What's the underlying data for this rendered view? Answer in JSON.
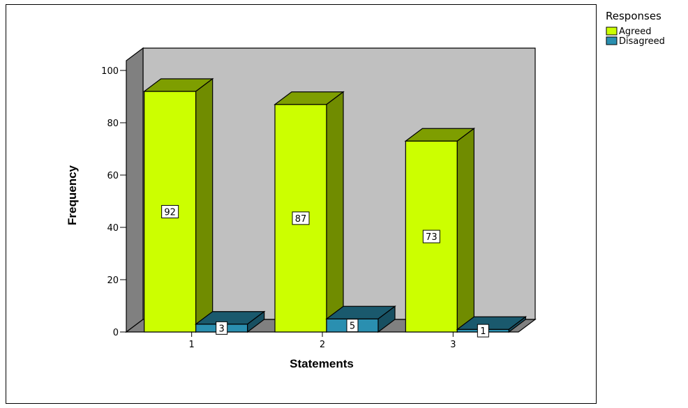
{
  "chart_data": {
    "type": "bar",
    "style": "3d-clustered",
    "xlabel": "Statements",
    "ylabel": "Frequency",
    "categories": [
      "1",
      "2",
      "3"
    ],
    "ylim": [
      0,
      100
    ],
    "yticks": [
      0,
      20,
      40,
      60,
      80,
      100
    ],
    "legend_title": "Responses",
    "legend_position": "top-right",
    "series": [
      {
        "name": "Agreed",
        "values": [
          92,
          87,
          73
        ],
        "color": "#ccff00"
      },
      {
        "name": "Disagreed",
        "values": [
          3,
          5,
          1
        ],
        "color": "#2a8fb0"
      }
    ],
    "wall_color": "#c0c0c0",
    "grid": false
  }
}
